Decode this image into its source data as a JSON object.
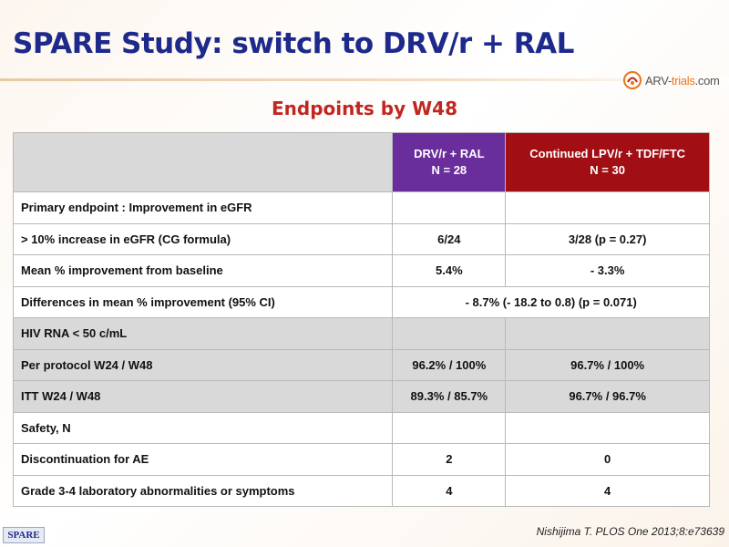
{
  "slide": {
    "title": "SPARE Study: switch to DRV/r + RAL",
    "subtitle": "Endpoints by W48",
    "logo": {
      "prefix": "ARV-",
      "brand": "trials",
      "suffix": ".com",
      "icon": "arv-trials-logo-icon"
    },
    "footer_badge": "SPARE",
    "citation": "Nishijima T. PLOS One 2013;8:e73639",
    "colors": {
      "title": "#1d2a8c",
      "subtitle": "#c0271f",
      "drv_header": "#6a2e9c",
      "lpv_header": "#a10f14",
      "shaded_row": "#d9d9d9"
    }
  },
  "table": {
    "header": {
      "col1": "",
      "col2_line1": "DRV/r + RAL",
      "col2_line2": "N = 28",
      "col3_line1": "Continued  LPV/r + TDF/FTC",
      "col3_line2": "N = 30"
    },
    "rows": [
      {
        "label": "Primary endpoint : Improvement in eGFR",
        "drv": "",
        "lpv": ""
      },
      {
        "label": "> 10% increase in eGFR (CG formula)",
        "drv": "6/24",
        "lpv": "3/28 (p = 0.27)"
      },
      {
        "label": "Mean % improvement from baseline",
        "drv": "5.4%",
        "lpv": "- 3.3%"
      },
      {
        "label": "Differences in mean % improvement (95% CI)",
        "merged": "- 8.7% (- 18.2 to 0.8) (p = 0.071)"
      },
      {
        "label": "HIV RNA < 50 c/mL",
        "drv": "",
        "lpv": ""
      },
      {
        "label": "Per protocol W24 / W48",
        "drv": "96.2% / 100%",
        "lpv": "96.7% / 100%"
      },
      {
        "label": "ITT W24 / W48",
        "drv": "89.3% / 85.7%",
        "lpv": "96.7% / 96.7%"
      },
      {
        "label": "Safety, N",
        "drv": "",
        "lpv": ""
      },
      {
        "label": "Discontinuation for AE",
        "drv": "2",
        "lpv": "0"
      },
      {
        "label": "Grade 3-4 laboratory abnormalities or symptoms",
        "drv": "4",
        "lpv": "4"
      }
    ]
  }
}
